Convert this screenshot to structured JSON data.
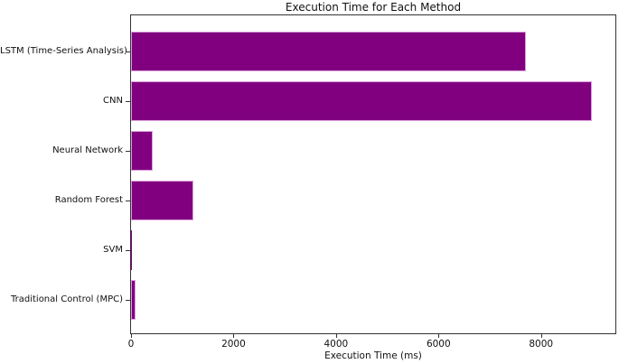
{
  "chart_data": {
    "type": "bar",
    "orientation": "horizontal",
    "title": "Execution Time for Each Method",
    "xlabel": "Execution Time (ms)",
    "ylabel": "",
    "categories": [
      "LSTM (Time-Series Analysis)",
      "CNN",
      "Neural Network",
      "Random Forest",
      "SVM",
      "Traditional Control (MPC)"
    ],
    "values": [
      7700,
      9000,
      430,
      1220,
      2,
      85
    ],
    "xlim": [
      0,
      9450
    ],
    "xticks": [
      0,
      2000,
      4000,
      6000,
      8000
    ],
    "grid": false,
    "legend_position": "none",
    "bar_color": "#800080",
    "bar_edge_color": "#DDA0DD",
    "spine_color": "#333333",
    "background_color": "#ffffff"
  }
}
